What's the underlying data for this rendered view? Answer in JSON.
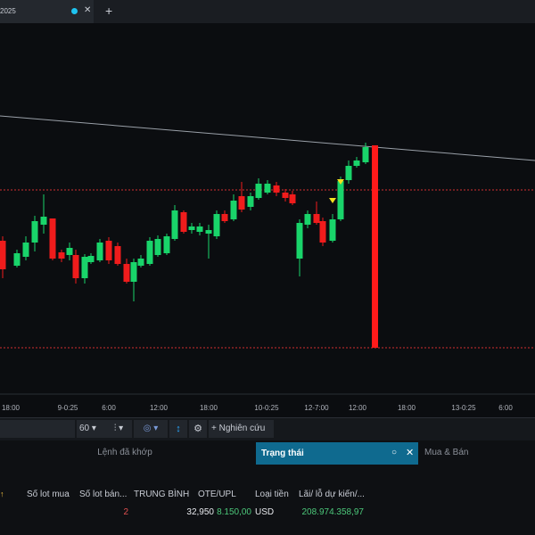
{
  "tab": {
    "title": "2025",
    "add": "+"
  },
  "chart": {
    "x_labels": [
      "18:00",
      "9-0:25",
      "6:00",
      "12:00",
      "18:00",
      "10-0:25",
      "12-7:00",
      "12:00",
      "18:00",
      "13-0:25",
      "6:00"
    ]
  },
  "toolbar": {
    "interval": "60",
    "research": "Nghiên cứu"
  },
  "panel_tabs": [
    "Lệnh đã khớp",
    "Trạng thái",
    "Mua & Bán"
  ],
  "table": {
    "headers": [
      "Số lot mua",
      "Số lot bán...",
      "TRUNG BÌNH",
      "OTE/UPL",
      "Loại tiền",
      "Lãi/ lỗ dự kiến/..."
    ],
    "rows": [
      [
        "",
        "2",
        "32,950",
        "8.150,00",
        "USD",
        "208.974.358,97"
      ]
    ]
  }
}
